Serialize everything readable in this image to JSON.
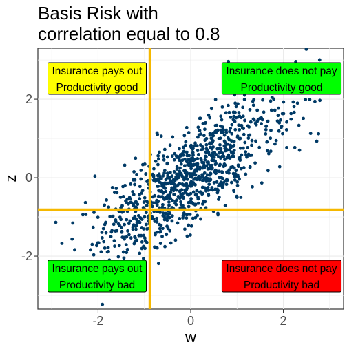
{
  "chart_data": {
    "type": "scatter",
    "title_lines": [
      "Basis Risk with",
      "correlation equal to 0.8"
    ],
    "xlabel": "w",
    "ylabel": "z",
    "xlim": [
      -3.3,
      3.3
    ],
    "ylim": [
      -3.35,
      3.3
    ],
    "x_ticks": [
      -2,
      0,
      2
    ],
    "x_tick_labels": [
      "-2",
      "0",
      "2"
    ],
    "y_ticks": [
      -2,
      0,
      2
    ],
    "y_tick_labels": [
      "-2",
      "0",
      "2"
    ],
    "grid": true,
    "correlation": 0.8,
    "n_points": 1000,
    "point_color": "#003a66",
    "threshold_w": -0.88,
    "threshold_z": -0.82,
    "threshold_color": "#f5b800",
    "quadrant_labels": [
      {
        "corner": "top-left",
        "lines": [
          "Insurance pays out",
          "Productivity good"
        ],
        "fill": "#ffff00"
      },
      {
        "corner": "top-right",
        "lines": [
          "Insurance does not pay",
          "Productivity good"
        ],
        "fill": "#00ff00"
      },
      {
        "corner": "bottom-left",
        "lines": [
          "Insurance pays out",
          "Productivity bad"
        ],
        "fill": "#00ff00"
      },
      {
        "corner": "bottom-right",
        "lines": [
          "Insurance does not pay",
          "Productivity bad"
        ],
        "fill": "#ff0000"
      }
    ]
  }
}
